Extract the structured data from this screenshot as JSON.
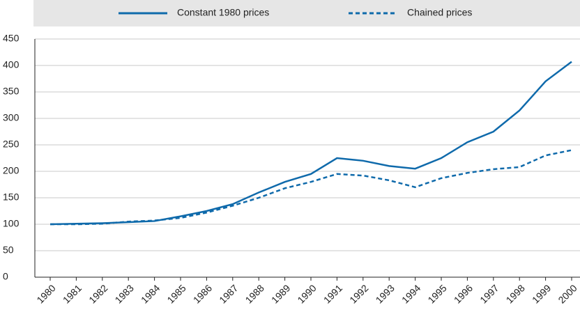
{
  "chart_data": {
    "type": "line",
    "x": [
      "1980",
      "1981",
      "1982",
      "1983",
      "1984",
      "1985",
      "1986",
      "1987",
      "1988",
      "1989",
      "1990",
      "1991",
      "1992",
      "1993",
      "1994",
      "1995",
      "1996",
      "1997",
      "1998",
      "1999",
      "2000"
    ],
    "series": [
      {
        "name": "Constant 1980 prices",
        "color": "#0f6aab",
        "dash": false,
        "values": [
          100,
          101,
          102,
          104,
          106,
          115,
          125,
          138,
          160,
          180,
          195,
          225,
          220,
          210,
          205,
          225,
          255,
          275,
          315,
          370,
          407
        ]
      },
      {
        "name": "Chained prices",
        "color": "#0f6aab",
        "dash": true,
        "values": [
          100,
          100,
          101,
          105,
          107,
          112,
          122,
          135,
          150,
          168,
          180,
          195,
          192,
          183,
          170,
          187,
          197,
          204,
          208,
          230,
          240
        ]
      }
    ],
    "ylim": [
      0,
      450
    ],
    "yticks": [
      0,
      50,
      100,
      150,
      200,
      250,
      300,
      350,
      400,
      450
    ],
    "grid": true,
    "legend": "top"
  }
}
